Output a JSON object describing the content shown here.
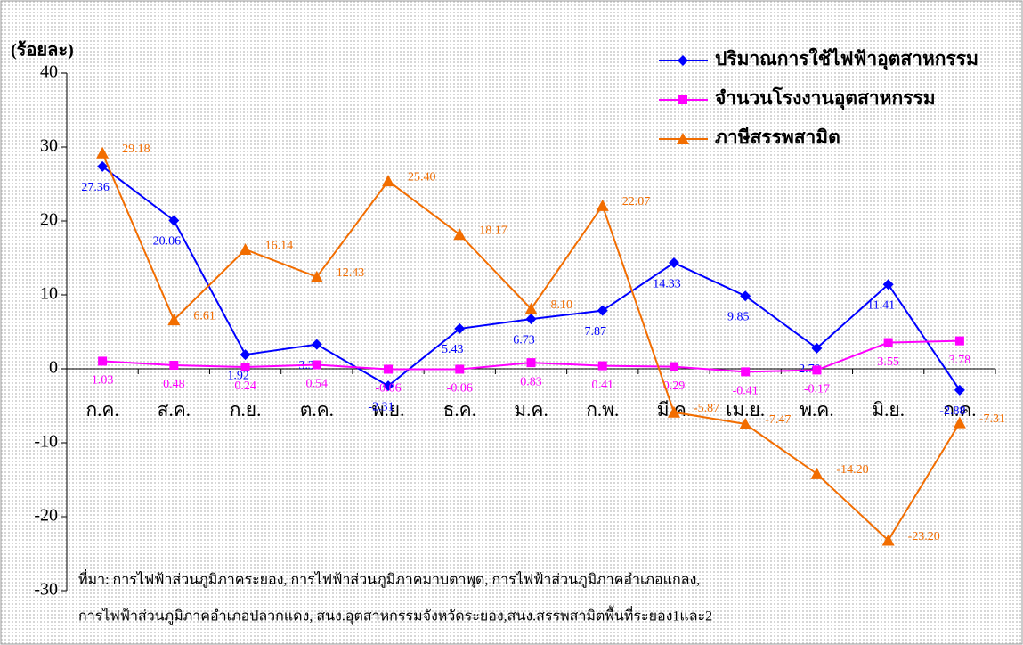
{
  "chart_data": {
    "type": "line",
    "y_label": "(ร้อยละ)",
    "categories": [
      "ก.ค.",
      "ส.ค.",
      "ก.ย.",
      "ต.ค.",
      "พ.ย.",
      "ธ.ค.",
      "ม.ค.",
      "ก.พ.",
      "มี.ค.",
      "เม.ย.",
      "พ.ค.",
      "มิ.ย.",
      "ก.ค."
    ],
    "series": [
      {
        "name": "ปริมาณการใช้ไฟฟ้าอุตสาหกรรม",
        "color": "#0000ff",
        "marker": "diamond",
        "values": [
          27.36,
          20.06,
          1.92,
          3.3,
          -2.31,
          5.43,
          6.73,
          7.87,
          14.33,
          9.85,
          2.79,
          11.41,
          -2.88
        ],
        "value_labels": [
          "27.36",
          "20.06",
          "1.92",
          "3.30",
          "-2.31",
          "5.43",
          "6.73",
          "7.87",
          "14.33",
          "9.85",
          "2.79",
          "11.41",
          "-2.88"
        ]
      },
      {
        "name": "จำนวนโรงงานอุตสาหกรรม",
        "color": "#ff00ff",
        "marker": "square",
        "values": [
          1.03,
          0.48,
          0.24,
          0.54,
          -0.06,
          -0.06,
          0.83,
          0.41,
          0.29,
          -0.41,
          -0.17,
          3.55,
          3.78
        ],
        "value_labels": [
          "1.03",
          "0.48",
          "0.24",
          "0.54",
          "-0.06",
          "-0.06",
          "0.83",
          "0.41",
          "0.29",
          "-0.41",
          "-0.17",
          "3.55",
          "3.78"
        ]
      },
      {
        "name": "ภาษีสรรพสามิต",
        "color": "#f26d00",
        "marker": "triangle",
        "values": [
          29.18,
          6.61,
          16.14,
          12.43,
          25.4,
          18.17,
          8.1,
          22.07,
          -5.87,
          -7.47,
          -14.2,
          -23.2,
          -7.31
        ],
        "value_labels": [
          "29.18",
          "6.61",
          "16.14",
          "12.43",
          "25.40",
          "18.17",
          "8.10",
          "22.07",
          "-5.87",
          "-7.47",
          "-14.20",
          "-23.20",
          "-7.31"
        ]
      }
    ],
    "ylim": [
      -30,
      40
    ],
    "yticks": [
      -30,
      -20,
      -10,
      0,
      10,
      20,
      30,
      40
    ],
    "grid": false,
    "legend": "top-right",
    "source": [
      "ที่มา: การไฟฟ้าส่วนภูมิภาคระยอง, การไฟฟ้าส่วนภูมิภาคมาบตาพุด, การไฟฟ้าส่วนภูมิภาคอำเภอแกลง,",
      "การไฟฟ้าส่วนภูมิภาคอำเภอปลวกแดง, สนง.อุตสาหกรรมจังหวัดระยอง,สนง.สรรพสามิตพื้นที่ระยอง1และ2"
    ]
  }
}
